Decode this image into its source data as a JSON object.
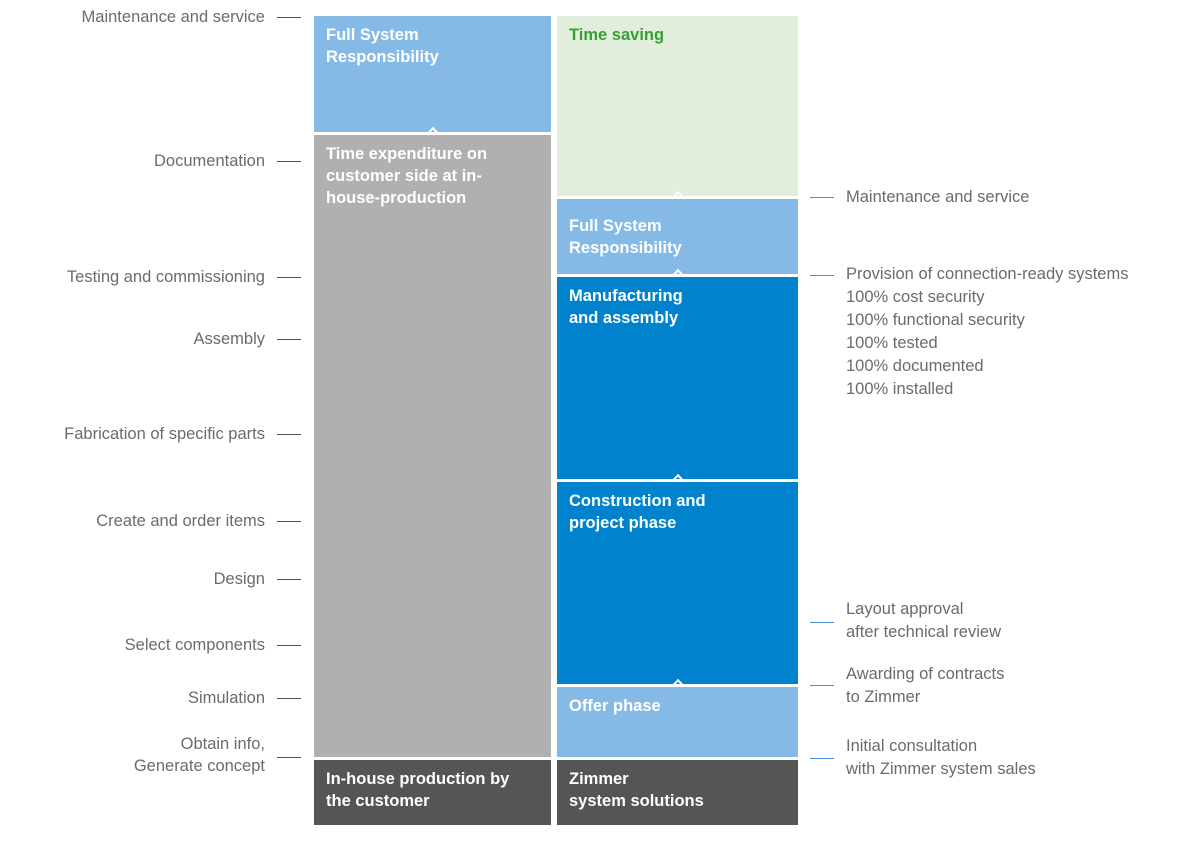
{
  "colors": {
    "light_blue": "#86bae6",
    "gray": "#b0b0b0",
    "dark_gray": "#555555",
    "green_bg": "#e1eedb",
    "green_text": "#35a035",
    "blue": "#0082cd"
  },
  "left_column": {
    "full_system": "Full System\nResponsibility",
    "time_expenditure": "Time expenditure on\ncustomer side at in-\nhouse-production",
    "in_house": "In-house production by\nthe customer"
  },
  "right_column": {
    "time_saving": "Time saving",
    "full_system": "Full System\nResponsibility",
    "manufacturing": "Manufacturing\nand assembly",
    "construction": "Construction and\nproject phase",
    "offer": "Offer phase",
    "zimmer": "Zimmer\nsystem solutions"
  },
  "left_labels": [
    "Maintenance and service",
    "Documentation",
    "Testing and commissioning",
    "Assembly",
    "Fabrication of specific parts",
    "Create and order items",
    "Design",
    "Select components",
    "Simulation",
    "Obtain info,\nGenerate concept"
  ],
  "right_labels": [
    "Maintenance and service",
    "Provision of connection-ready systems\n100%  cost security\n100%  functional security\n100%  tested\n100%  documented\n100%  installed",
    "Layout approval\nafter technical review",
    "Awarding of contracts\nto Zimmer",
    "Initial consultation\nwith Zimmer system sales"
  ]
}
